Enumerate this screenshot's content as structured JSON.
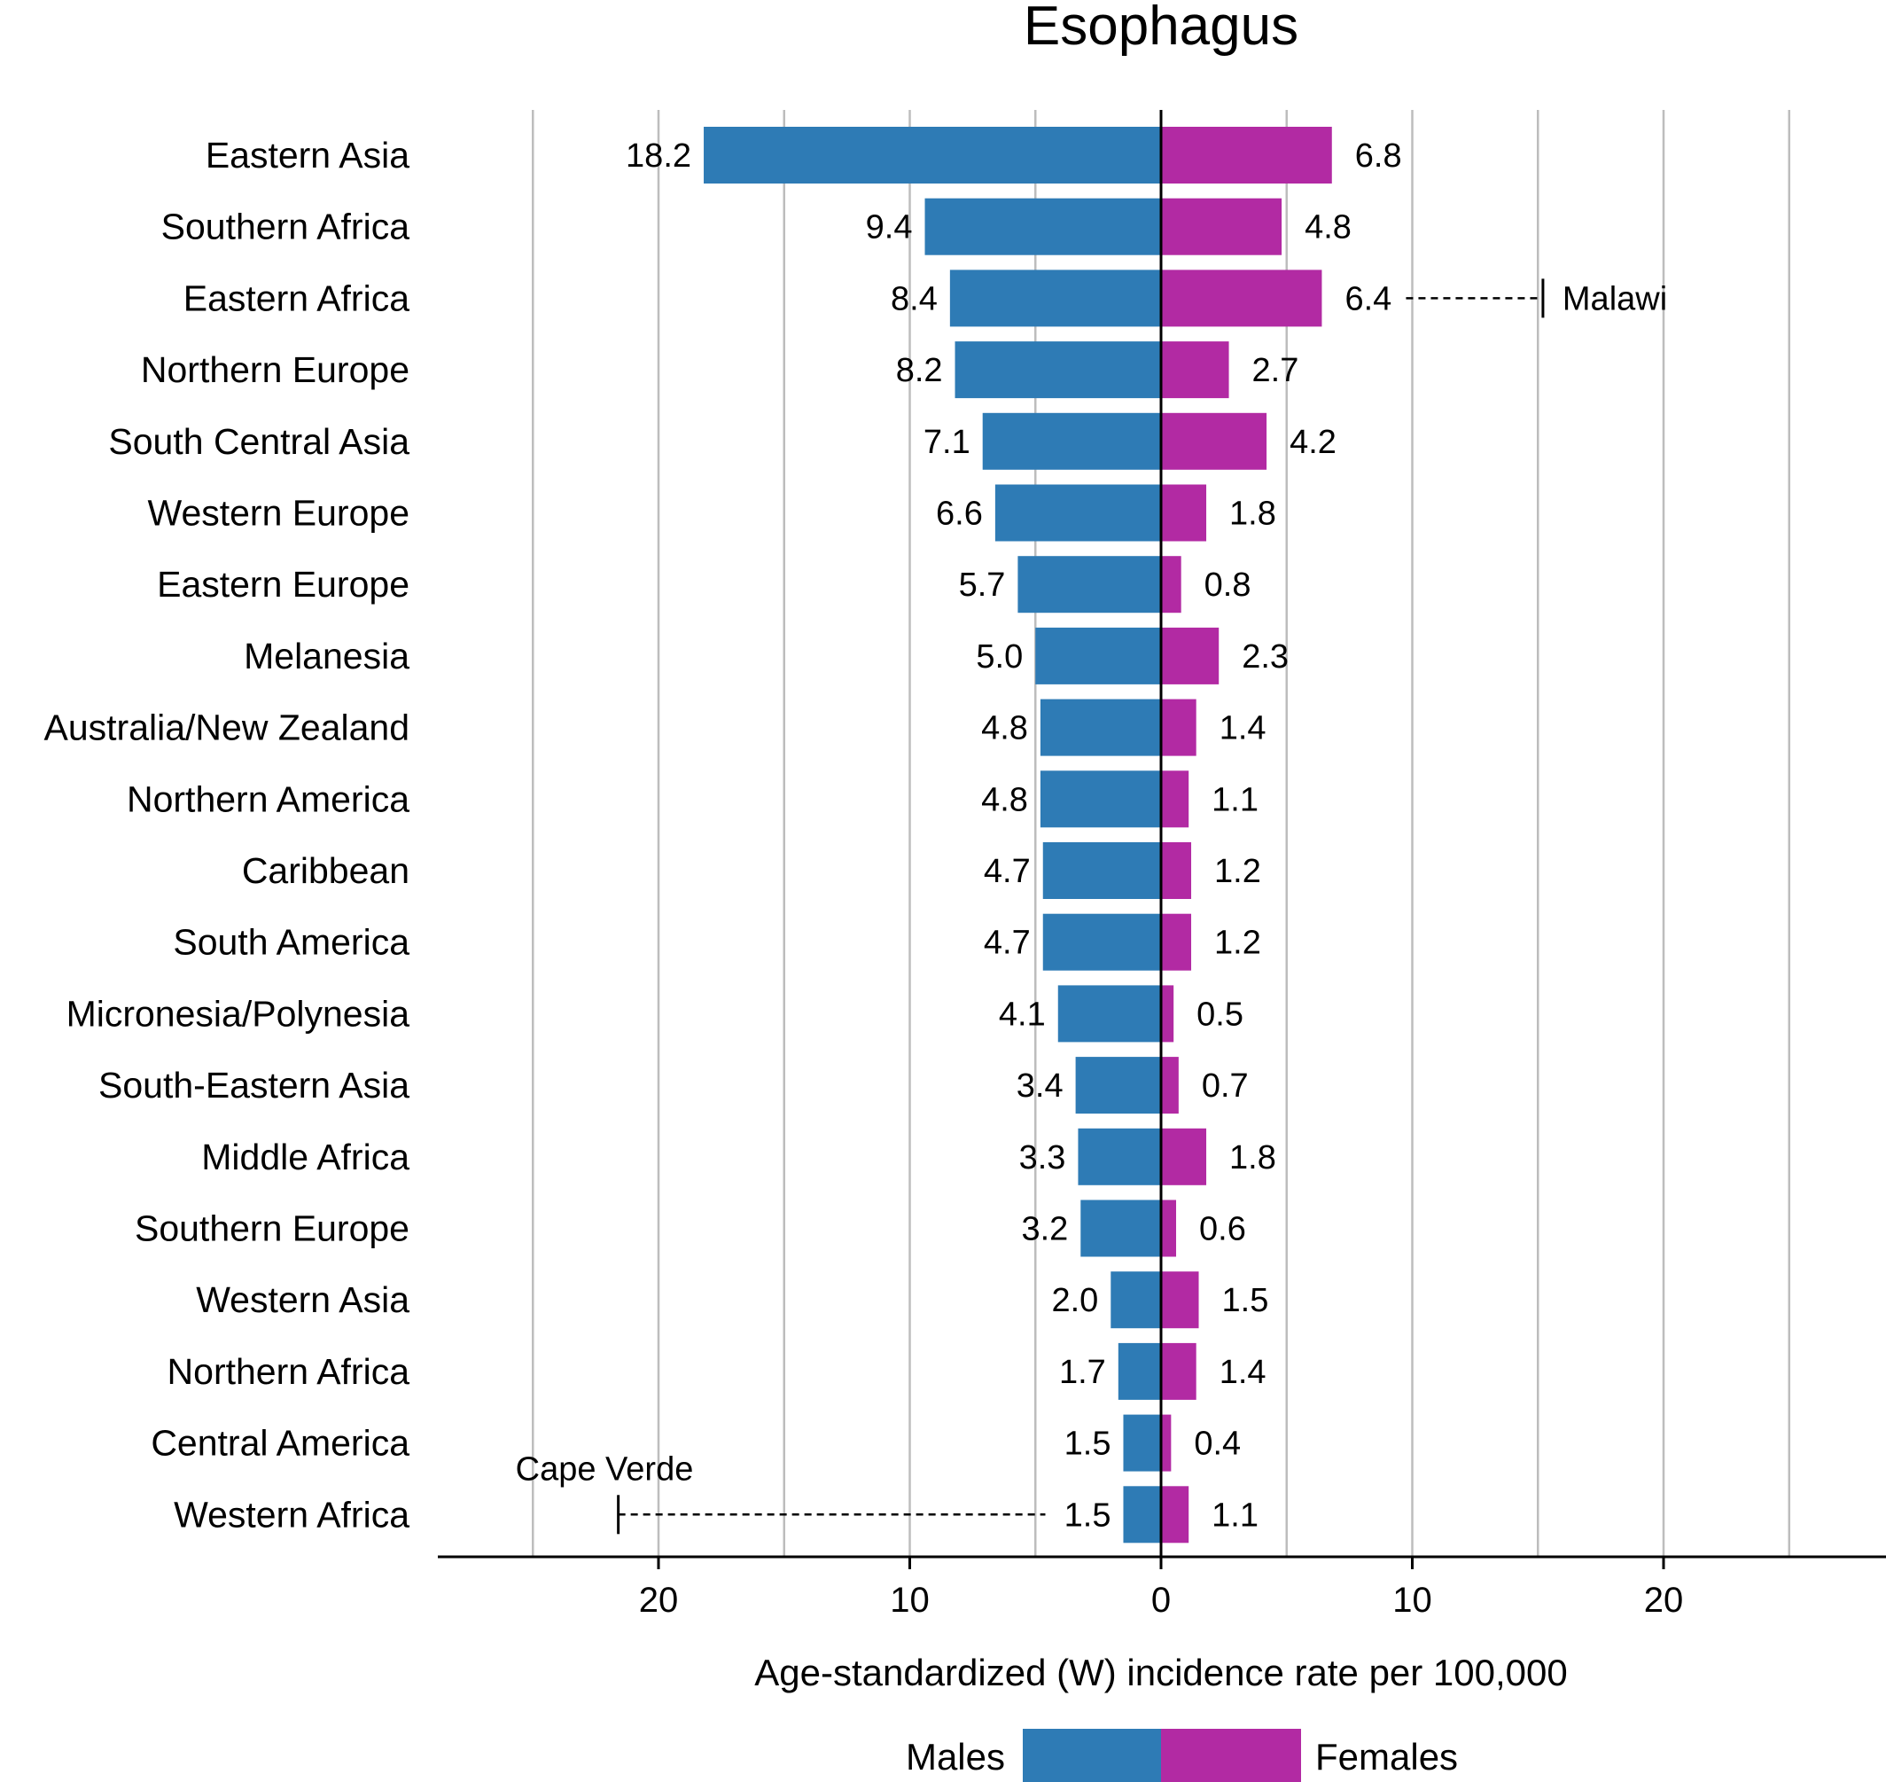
{
  "chart_data": {
    "type": "bar",
    "orientation": "horizontal-diverging",
    "title": "Esophagus",
    "xlabel": "Age-standardized (W) incidence rate per 100,000",
    "ylabel": "",
    "xlim": [
      -29,
      29
    ],
    "x_ticks": [
      -20,
      -10,
      0,
      10,
      20
    ],
    "x_tick_labels": [
      "20",
      "10",
      "0",
      "10",
      "20"
    ],
    "grid_x": [
      -25,
      -20,
      -15,
      -10,
      -5,
      5,
      10,
      15,
      20,
      25
    ],
    "grid": true,
    "legend_position": "bottom",
    "categories": [
      "Eastern Asia",
      "Southern Africa",
      "Eastern Africa",
      "Northern Europe",
      "South Central Asia",
      "Western Europe",
      "Eastern Europe",
      "Melanesia",
      "Australia/New Zealand",
      "Northern America",
      "Caribbean",
      "South America",
      "Micronesia/Polynesia",
      "South-Eastern Asia",
      "Middle Africa",
      "Southern Europe",
      "Western Asia",
      "Northern Africa",
      "Central America",
      "Western Africa"
    ],
    "series": [
      {
        "name": "Males",
        "color": "#2e7bb5",
        "side": "left",
        "values": [
          18.2,
          9.4,
          8.4,
          8.2,
          7.1,
          6.6,
          5.7,
          5.0,
          4.8,
          4.8,
          4.7,
          4.7,
          4.1,
          3.4,
          3.3,
          3.2,
          2.0,
          1.7,
          1.5,
          1.5
        ],
        "labels": [
          "18.2",
          "9.4",
          "8.4",
          "8.2",
          "7.1",
          "6.6",
          "5.7",
          "5.0",
          "4.8",
          "4.8",
          "4.7",
          "4.7",
          "4.1",
          "3.4",
          "3.3",
          "3.2",
          "2.0",
          "1.7",
          "1.5",
          "1.5"
        ]
      },
      {
        "name": "Females",
        "color": "#b22aa3",
        "side": "right",
        "values": [
          6.8,
          4.8,
          6.4,
          2.7,
          4.2,
          1.8,
          0.8,
          2.3,
          1.4,
          1.1,
          1.2,
          1.2,
          0.5,
          0.7,
          1.8,
          0.6,
          1.5,
          1.4,
          0.4,
          1.1
        ],
        "labels": [
          "6.8",
          "4.8",
          "6.4",
          "2.7",
          "4.2",
          "1.8",
          "0.8",
          "2.3",
          "1.4",
          "1.1",
          "1.2",
          "1.2",
          "0.5",
          "0.7",
          "1.8",
          "0.6",
          "1.5",
          "1.4",
          "0.4",
          "1.1"
        ]
      }
    ],
    "annotations": [
      {
        "category": "Eastern Africa",
        "series": "Females",
        "max_value": 15.2,
        "label": "Malawi"
      },
      {
        "category": "Western Africa",
        "series": "Males",
        "max_value": 21.6,
        "label": "Cape Verde"
      }
    ]
  }
}
